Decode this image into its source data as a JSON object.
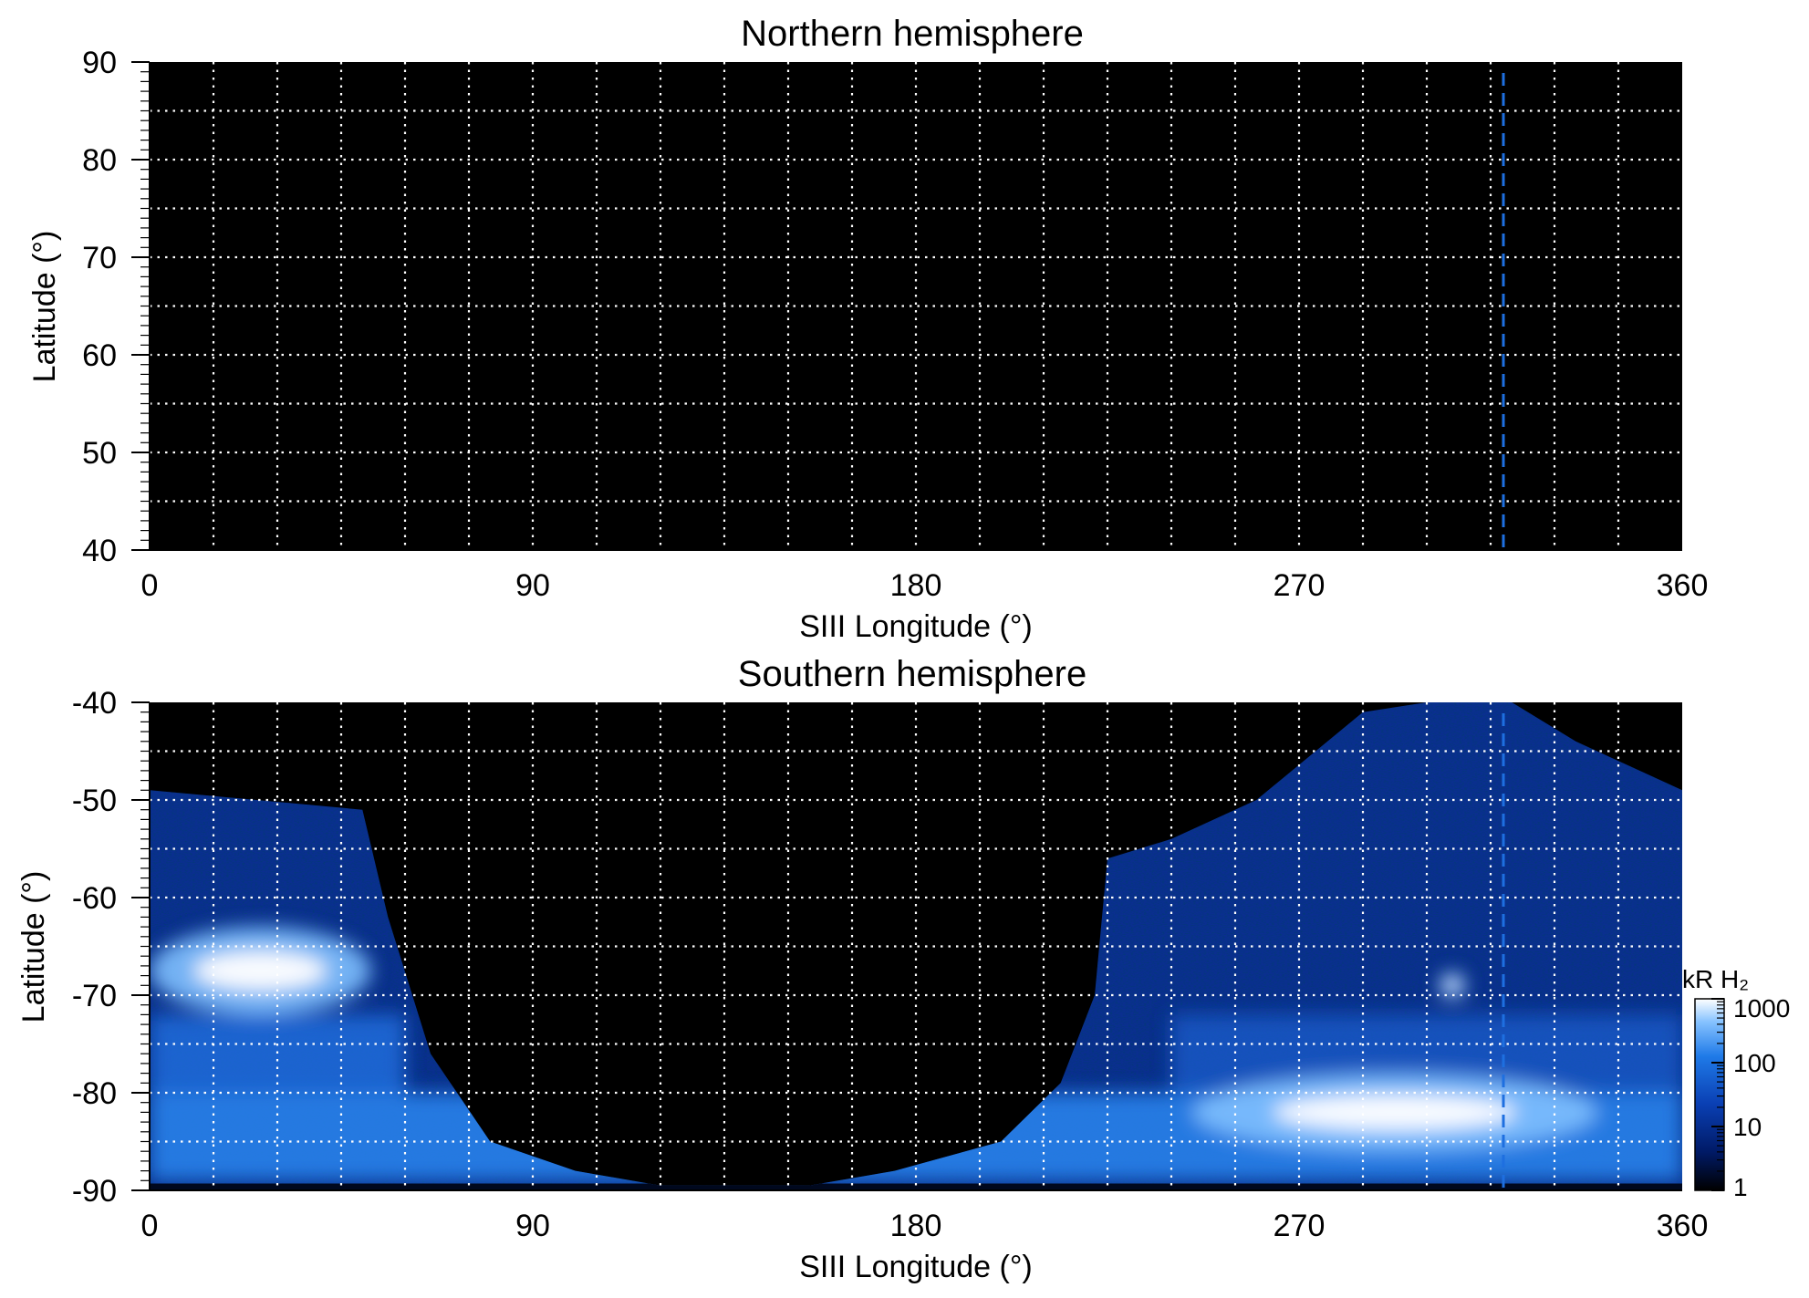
{
  "chart_data": [
    {
      "type": "heatmap",
      "title": "Northern hemisphere",
      "xlabel": "SIII Longitude (°)",
      "ylabel": "Latitude (°)",
      "xlim": [
        0,
        360
      ],
      "ylim": [
        40,
        90
      ],
      "x_ticks": [
        "0",
        "90",
        "180",
        "270",
        "360"
      ],
      "y_ticks": [
        "40",
        "50",
        "60",
        "70",
        "80",
        "90"
      ],
      "grid": true,
      "grid_x_step": 15,
      "grid_y_step": 5,
      "background": "#000000",
      "emission": "none",
      "marker_line": {
        "x": 318,
        "style": "dashed",
        "color": "#1e6fe0"
      }
    },
    {
      "type": "heatmap",
      "title": "Southern hemisphere",
      "xlabel": "SIII Longitude (°)",
      "ylabel": "Latitude (°)",
      "xlim": [
        0,
        360
      ],
      "ylim": [
        -90,
        -40
      ],
      "x_ticks": [
        "0",
        "90",
        "180",
        "270",
        "360"
      ],
      "y_ticks": [
        "-40",
        "-50",
        "-60",
        "-70",
        "-80",
        "-90"
      ],
      "grid": true,
      "grid_x_step": 15,
      "grid_y_step": 5,
      "background": "#000000",
      "marker_line": {
        "x": 318,
        "style": "dashed",
        "color": "#1e6fe0"
      },
      "coverage_boundary": [
        [
          0,
          -49
        ],
        [
          50,
          -51
        ],
        [
          56,
          -62
        ],
        [
          66,
          -76
        ],
        [
          80,
          -85
        ],
        [
          100,
          -88
        ],
        [
          120,
          -89.5
        ],
        [
          155,
          -89.5
        ],
        [
          175,
          -88
        ],
        [
          200,
          -85
        ],
        [
          214,
          -79
        ],
        [
          222,
          -70
        ],
        [
          225,
          -56
        ],
        [
          240,
          -54
        ],
        [
          260,
          -50
        ],
        [
          285,
          -41
        ],
        [
          300,
          -40
        ],
        [
          320,
          -40
        ],
        [
          335,
          -44
        ],
        [
          360,
          -49
        ]
      ],
      "bright_features": [
        {
          "label": "main-oval-west",
          "lon": [
            0,
            52
          ],
          "lat": [
            -72,
            -63
          ],
          "peak_kR": 1000
        },
        {
          "label": "main-oval-east",
          "lon": [
            245,
            340
          ],
          "lat": [
            -86,
            -78
          ],
          "peak_kR": 1000
        },
        {
          "label": "spot",
          "lon": [
            306,
            306
          ],
          "lat": [
            -69,
            -69
          ],
          "peak_kR": 1000
        }
      ],
      "colorbar": {
        "label": "kR H₂",
        "scale": "log",
        "range": [
          1,
          1000
        ],
        "ticks": [
          "1000",
          "100",
          "10",
          "1"
        ],
        "colors": [
          "#000000",
          "#001a66",
          "#0a3fb3",
          "#1f7ae8",
          "#86c2ff",
          "#ffffff"
        ]
      }
    }
  ]
}
